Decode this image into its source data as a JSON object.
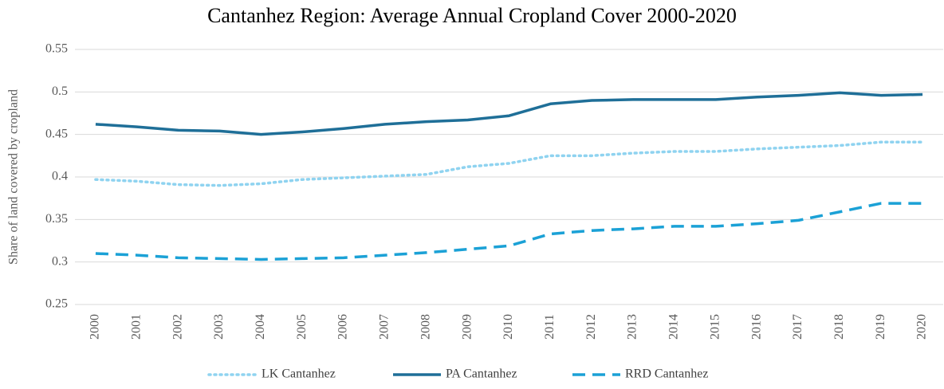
{
  "chart_data": {
    "type": "line",
    "title": "Cantanhez Region: Average Annual Cropland Cover 2000-2020",
    "y_label": "Share of land covered by cropland",
    "categories": [
      "2000",
      "2001",
      "2002",
      "2003",
      "2004",
      "2005",
      "2006",
      "2007",
      "2008",
      "2009",
      "2010",
      "2011",
      "2012",
      "2013",
      "2014",
      "2015",
      "2016",
      "2017",
      "2018",
      "2019",
      "2020"
    ],
    "series": [
      {
        "name": "LK Cantanhez",
        "color": "#8fd3f0",
        "style": "dotted",
        "values": [
          0.397,
          0.395,
          0.391,
          0.39,
          0.392,
          0.397,
          0.399,
          0.401,
          0.403,
          0.412,
          0.416,
          0.425,
          0.425,
          0.428,
          0.43,
          0.43,
          0.433,
          0.435,
          0.437,
          0.441,
          0.441
        ]
      },
      {
        "name": "PA Cantanhez",
        "color": "#1f6f98",
        "style": "solid",
        "values": [
          0.462,
          0.459,
          0.455,
          0.454,
          0.45,
          0.453,
          0.457,
          0.462,
          0.465,
          0.467,
          0.472,
          0.486,
          0.49,
          0.491,
          0.491,
          0.491,
          0.494,
          0.496,
          0.499,
          0.496,
          0.497
        ]
      },
      {
        "name": "RRD Cantanhez",
        "color": "#1ba1d6",
        "style": "dashed",
        "values": [
          0.31,
          0.308,
          0.305,
          0.304,
          0.303,
          0.304,
          0.305,
          0.308,
          0.311,
          0.315,
          0.319,
          0.333,
          0.337,
          0.339,
          0.342,
          0.342,
          0.345,
          0.349,
          0.359,
          0.369,
          0.369
        ]
      }
    ],
    "ylim": [
      0.25,
      0.55
    ],
    "yticks": [
      0.25,
      0.3,
      0.35,
      0.4,
      0.45,
      0.5,
      0.55
    ],
    "grid": true,
    "legend": "bottom"
  }
}
